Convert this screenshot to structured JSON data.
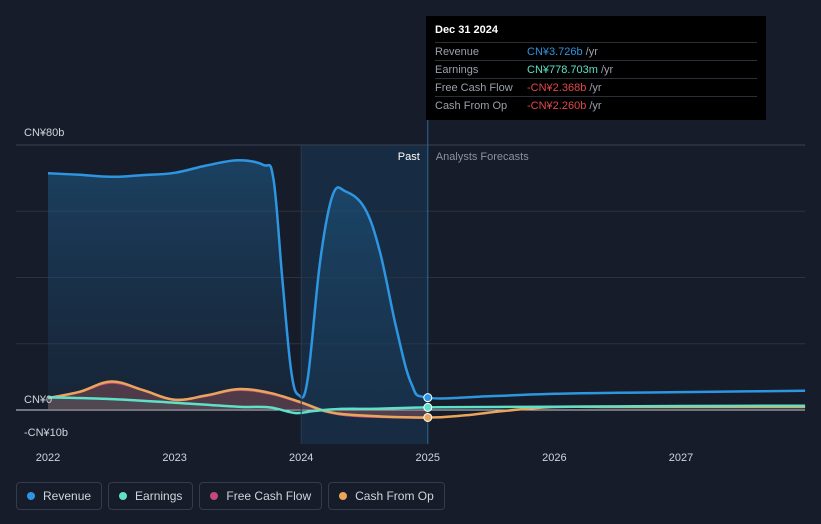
{
  "chart_data": {
    "type": "area",
    "currency_prefix": "CN¥",
    "y_unit": "CN¥ billions",
    "ylim": [
      -10,
      80
    ],
    "y_labels": [
      {
        "value": 80,
        "label": "CN¥80b"
      },
      {
        "value": 0,
        "label": "CN¥0"
      },
      {
        "value": -10,
        "label": "-CN¥10b"
      }
    ],
    "x_ticks": [
      "2022",
      "2023",
      "2024",
      "2025",
      "2026",
      "2027"
    ],
    "xlim": [
      2021.78,
      2027.98
    ],
    "past_start": 2023.0,
    "forecast_start": 2024.0,
    "past_label": "Past",
    "forecast_label": "Analysts Forecasts",
    "series": [
      {
        "name": "Revenue",
        "color": "#2e95e0",
        "points": [
          [
            2022.0,
            71.5
          ],
          [
            2022.25,
            71.0
          ],
          [
            2022.5,
            70.4
          ],
          [
            2022.75,
            70.9
          ],
          [
            2023.0,
            71.6
          ],
          [
            2023.25,
            73.8
          ],
          [
            2023.5,
            75.4
          ],
          [
            2023.7,
            74.0
          ],
          [
            2023.78,
            70
          ],
          [
            2023.85,
            40
          ],
          [
            2023.92,
            12
          ],
          [
            2023.98,
            4.5
          ],
          [
            2024.05,
            9
          ],
          [
            2024.15,
            45
          ],
          [
            2024.25,
            65
          ],
          [
            2024.35,
            66
          ],
          [
            2024.5,
            61
          ],
          [
            2024.62,
            48
          ],
          [
            2024.75,
            25
          ],
          [
            2024.87,
            8
          ],
          [
            2025.0,
            3.726
          ],
          [
            2025.5,
            4.2
          ],
          [
            2026.0,
            4.9
          ],
          [
            2026.5,
            5.2
          ],
          [
            2027.0,
            5.4
          ],
          [
            2027.5,
            5.6
          ],
          [
            2027.98,
            5.8
          ]
        ]
      },
      {
        "name": "Earnings",
        "color": "#5fe0c8",
        "points": [
          [
            2022.0,
            3.8
          ],
          [
            2022.5,
            3.3
          ],
          [
            2023.0,
            2.2
          ],
          [
            2023.5,
            1.0
          ],
          [
            2023.75,
            0.8
          ],
          [
            2023.95,
            -0.9
          ],
          [
            2024.1,
            -0.3
          ],
          [
            2024.3,
            0.3
          ],
          [
            2024.6,
            0.4
          ],
          [
            2025.0,
            0.779
          ],
          [
            2025.5,
            0.9
          ],
          [
            2026.0,
            1.0
          ],
          [
            2026.5,
            1.1
          ],
          [
            2027.0,
            1.2
          ],
          [
            2027.98,
            1.3
          ]
        ]
      },
      {
        "name": "Free Cash Flow",
        "color": "#c04a7b",
        "points": [
          [
            2022.0,
            3.6
          ],
          [
            2022.25,
            5.5
          ],
          [
            2022.5,
            8.3
          ],
          [
            2022.75,
            6.0
          ],
          [
            2023.0,
            3.1
          ],
          [
            2023.25,
            4.3
          ],
          [
            2023.5,
            6.1
          ],
          [
            2023.75,
            5.0
          ],
          [
            2024.0,
            2.2
          ],
          [
            2024.2,
            -0.5
          ],
          [
            2024.45,
            -1.8
          ],
          [
            2025.0,
            -2.368
          ]
        ]
      },
      {
        "name": "Cash From Op",
        "color": "#eaa55c",
        "points": [
          [
            2022.0,
            3.6
          ],
          [
            2022.25,
            5.5
          ],
          [
            2022.5,
            8.6
          ],
          [
            2022.75,
            6.0
          ],
          [
            2023.0,
            3.1
          ],
          [
            2023.25,
            4.4
          ],
          [
            2023.5,
            6.3
          ],
          [
            2023.75,
            5.2
          ],
          [
            2024.0,
            2.3
          ],
          [
            2024.2,
            -0.4
          ],
          [
            2024.45,
            -1.6
          ],
          [
            2025.0,
            -2.26
          ],
          [
            2025.3,
            -1.6
          ],
          [
            2025.6,
            -0.3
          ],
          [
            2026.0,
            0.9
          ],
          [
            2026.5,
            0.9
          ],
          [
            2027.0,
            0.9
          ],
          [
            2027.98,
            0.9
          ]
        ]
      }
    ]
  },
  "tooltip": {
    "date": "Dec 31 2024",
    "rows": [
      {
        "label": "Revenue",
        "value": "CN¥3.726b",
        "unit": "/yr",
        "color": "#2e95e0"
      },
      {
        "label": "Earnings",
        "value": "CN¥778.703m",
        "unit": "/yr",
        "color": "#5fe0c8"
      },
      {
        "label": "Free Cash Flow",
        "value": "-CN¥2.368b",
        "unit": "/yr",
        "color": "#e0474c"
      },
      {
        "label": "Cash From Op",
        "value": "-CN¥2.260b",
        "unit": "/yr",
        "color": "#e0474c"
      }
    ]
  },
  "legend": [
    {
      "label": "Revenue",
      "color": "#2e95e0"
    },
    {
      "label": "Earnings",
      "color": "#5fe0c8"
    },
    {
      "label": "Free Cash Flow",
      "color": "#c04a7b"
    },
    {
      "label": "Cash From Op",
      "color": "#eaa55c"
    }
  ]
}
